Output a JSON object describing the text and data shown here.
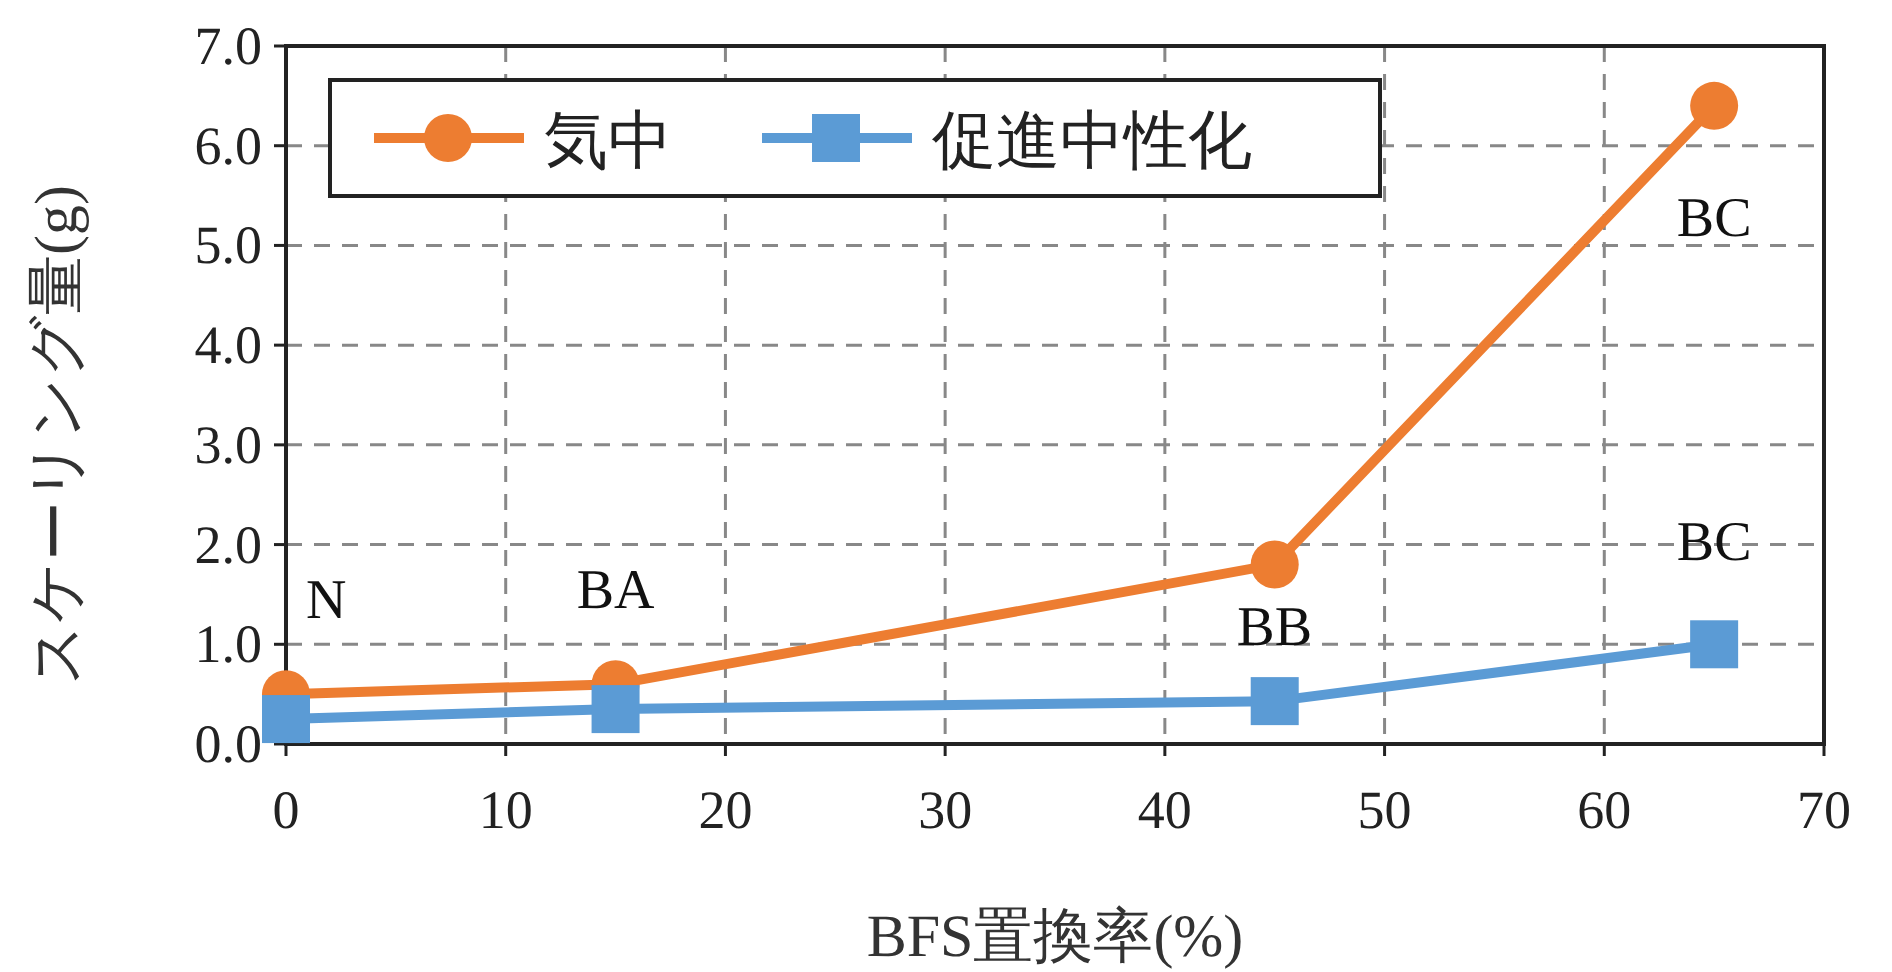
{
  "chart_data": {
    "type": "line",
    "xlabel": "BFS置換率(%)",
    "ylabel": "スケーリング量(g)",
    "x": [
      0,
      15,
      45,
      65
    ],
    "series": [
      {
        "name": "気中",
        "color": "#ed7d31",
        "marker": "circle",
        "values": [
          0.5,
          0.6,
          1.8,
          6.4
        ]
      },
      {
        "name": "促進中性化",
        "color": "#5b9bd5",
        "marker": "square",
        "values": [
          0.25,
          0.35,
          0.43,
          1.0
        ]
      }
    ],
    "xlim": [
      0,
      70
    ],
    "xticks": [
      0,
      10,
      20,
      30,
      40,
      50,
      60,
      70
    ],
    "ylim": [
      0,
      7
    ],
    "yticks": [
      {
        "value": 0,
        "label": "0.0"
      },
      {
        "value": 1,
        "label": "1.0"
      },
      {
        "value": 2,
        "label": "2.0"
      },
      {
        "value": 3,
        "label": "3.0"
      },
      {
        "value": 4,
        "label": "4.0"
      },
      {
        "value": 5,
        "label": "5.0"
      },
      {
        "value": 6,
        "label": "6.0"
      },
      {
        "value": 7,
        "label": "7.0"
      }
    ],
    "grid": true,
    "legend": "top left",
    "line_style": "solid",
    "annotations": [
      {
        "text": "N",
        "x": 0,
        "y": 0.5
      },
      {
        "text": "BA",
        "x": 15,
        "y": 0.6
      },
      {
        "text": "BB",
        "x": 45,
        "y": 1.8
      },
      {
        "text": "BC",
        "x": 65,
        "y": 6.4
      },
      {
        "text": "BC",
        "x": 65,
        "y": 1.0
      }
    ]
  }
}
